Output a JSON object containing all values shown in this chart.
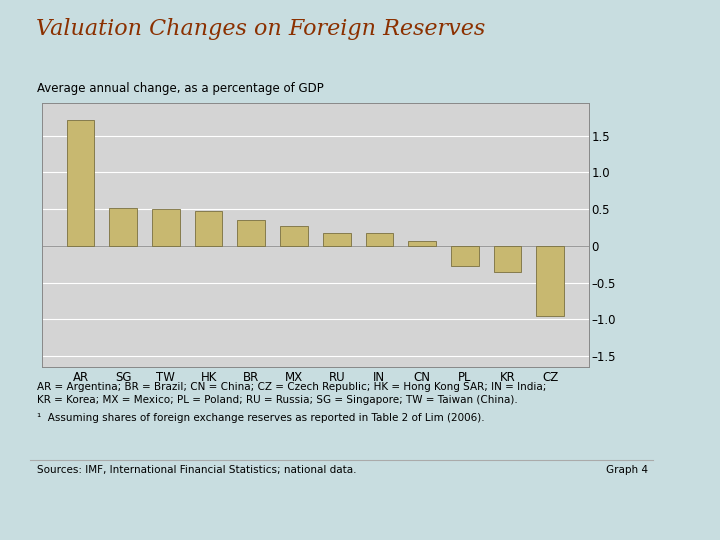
{
  "title": "Valuation Changes on Foreign Reserves",
  "subtitle": "Average annual change, as a percentage of GDP",
  "categories": [
    "AR",
    "SG",
    "TW",
    "HK",
    "BR",
    "MX",
    "RU",
    "IN",
    "CN",
    "PL",
    "KR",
    "CZ"
  ],
  "values": [
    1.72,
    0.52,
    0.5,
    0.47,
    0.35,
    0.27,
    0.18,
    0.17,
    0.07,
    -0.27,
    -0.35,
    -0.95
  ],
  "bar_color": "#C8B870",
  "bar_edge_color": "#7A7040",
  "ylim": [
    -1.65,
    1.95
  ],
  "yticks": [
    -1.5,
    -1.0,
    -0.5,
    0,
    0.5,
    1.0,
    1.5
  ],
  "title_color": "#8B3000",
  "title_fontsize": 16,
  "subtitle_fontsize": 8.5,
  "bg_color": "#C8DDE0",
  "plot_bg_color": "#D4D4D4",
  "outer_box_color": "#AAAAAA",
  "footnote1": "AR = Argentina; BR = Brazil; CN = China; CZ = Czech Republic; HK = Hong Kong SAR; IN = India;",
  "footnote2": "KR = Korea; MX = Mexico; PL = Poland; RU = Russia; SG = Singapore; TW = Taiwan (China).",
  "footnote3": "¹  Assuming shares of foreign exchange reserves as reported in Table 2 of Lim (2006).",
  "footnote4": "Sources: IMF, International Financial Statistics; national data.",
  "footnote5": "Graph 4"
}
